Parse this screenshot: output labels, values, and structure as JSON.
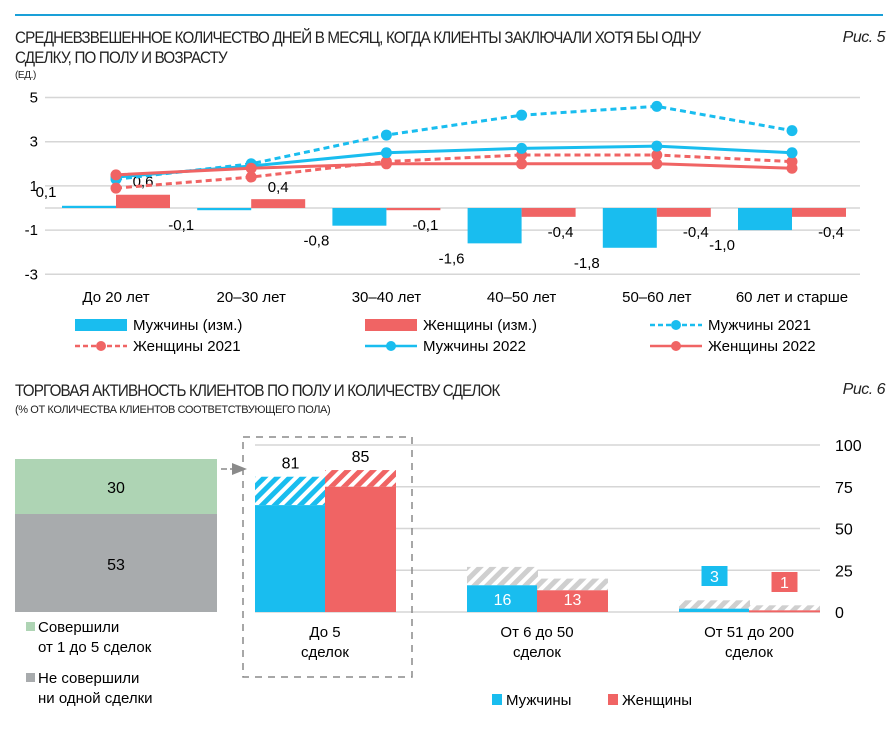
{
  "figure5": {
    "title_line1": "СРЕДНЕВЗВЕШЕННОЕ КОЛИЧЕСТВО ДНЕЙ В МЕСЯЦ, КОГДА КЛИЕНТЫ ЗАКЛЮЧАЛИ ХОТЯ БЫ ОДНУ",
    "title_line2": "СДЕЛКУ, ПО ПОЛУ И ВОЗРАСТУ",
    "unit": "(ЕД.)",
    "fig_label": "Рис. 5"
  },
  "figure6": {
    "title": "ТОРГОВАЯ АКТИВНОСТЬ КЛИЕНТОВ ПО ПОЛУ И КОЛИЧЕСТВУ СДЕЛОК",
    "unit": "(% ОТ КОЛИЧЕСТВА КЛИЕНТОВ СООТВЕТСТВУЮЩЕГО ПОЛА)",
    "fig_label": "Рис. 6"
  },
  "colors": {
    "men": "#19bdef",
    "women": "#f06464",
    "green": "#aed4b4",
    "gray": "#a8abad",
    "accent": "#1aa0d8"
  },
  "chart_data": [
    {
      "type": "bar+line",
      "ylim": [
        -3,
        5
      ],
      "yticks": [
        "5",
        "3",
        "1",
        "-1",
        "-3"
      ],
      "ytick_values": [
        5,
        3,
        1,
        -1,
        -3
      ],
      "grid": true,
      "legend_placement": "bottom",
      "categories": [
        "До 20 лет",
        "20–30 лет",
        "30–40 лет",
        "40–50 лет",
        "50–60 лет",
        "60 лет и старше"
      ],
      "series": [
        {
          "name": "Мужчины (изм.)",
          "kind": "bar",
          "color": "#19bdef",
          "values": [
            0.1,
            -0.1,
            -0.8,
            -1.6,
            -1.8,
            -1.0
          ],
          "labels": [
            "0,1",
            "-0,1",
            "-0,8",
            "-1,6",
            "-1,8",
            "-1,0"
          ]
        },
        {
          "name": "Женщины (изм.)",
          "kind": "bar",
          "color": "#f06464",
          "values": [
            0.6,
            0.4,
            -0.1,
            -0.4,
            -0.4,
            -0.4
          ],
          "labels": [
            "0,6",
            "0,4",
            "-0,1",
            "-0,4",
            "-0,4",
            "-0,4"
          ]
        },
        {
          "name": "Мужчины 2021",
          "kind": "line",
          "dashed": true,
          "color": "#19bdef",
          "values": [
            1.3,
            2.0,
            3.3,
            4.2,
            4.6,
            3.5
          ]
        },
        {
          "name": "Женщины 2021",
          "kind": "line",
          "dashed": true,
          "color": "#f06464",
          "values": [
            0.9,
            1.4,
            2.1,
            2.4,
            2.4,
            2.1
          ]
        },
        {
          "name": "Мужчины 2022",
          "kind": "line",
          "dashed": false,
          "color": "#19bdef",
          "values": [
            1.4,
            1.9,
            2.5,
            2.7,
            2.8,
            2.5
          ]
        },
        {
          "name": "Женщины 2022",
          "kind": "line",
          "dashed": false,
          "color": "#f06464",
          "values": [
            1.5,
            1.8,
            2.0,
            2.0,
            2.0,
            1.8
          ]
        }
      ]
    },
    {
      "type": "bar",
      "ylim": [
        0,
        100
      ],
      "yticks": [
        "100",
        "75",
        "50",
        "25",
        "0"
      ],
      "ytick_values": [
        100,
        75,
        50,
        25,
        0
      ],
      "grid": true,
      "legend_placement": "bottom",
      "categories": [
        "До 5\nсделок",
        "От 6 до 50\nсделок",
        "От 51 до 200\nсделок"
      ],
      "category_lines": [
        [
          "До 5",
          "сделок"
        ],
        [
          "От 6 до 50",
          "сделок"
        ],
        [
          "От 51 до 200",
          "сделок"
        ]
      ],
      "series": [
        {
          "name": "Мужчины",
          "color": "#19bdef",
          "values": [
            81,
            16,
            3
          ],
          "labels": [
            "81",
            "16",
            "3"
          ],
          "solid_estimate": [
            64,
            16,
            2
          ],
          "hatched_top_estimate": [
            81,
            27,
            7
          ]
        },
        {
          "name": "Женщины",
          "color": "#f06464",
          "values": [
            85,
            13,
            1
          ],
          "labels": [
            "85",
            "13",
            "1"
          ],
          "solid_estimate": [
            75,
            13,
            1
          ],
          "hatched_top_estimate": [
            85,
            20,
            4
          ]
        }
      ],
      "breakdown": {
        "items": [
          {
            "label_line1": "Совершили",
            "label_line2": "от 1 до 5 сделок",
            "value": 30,
            "label": "30",
            "color": "#aed4b4"
          },
          {
            "label_line1": "Не совершили",
            "label_line2": "ни одной сделки",
            "value": 53,
            "label": "53",
            "color": "#a8abad"
          }
        ]
      }
    }
  ]
}
